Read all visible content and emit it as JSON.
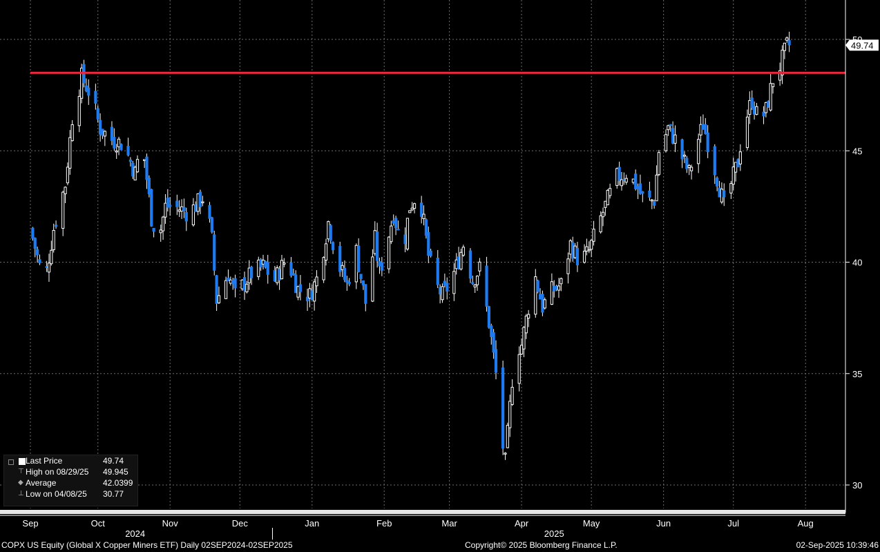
{
  "chart_data": {
    "type": "candlestick",
    "y_range": [
      29.5,
      51.5
    ],
    "y_ticks": [
      30,
      35,
      40,
      45,
      50
    ],
    "y_tick_labels": [
      "30",
      "35",
      "40",
      "45",
      "50"
    ],
    "last_value_label": "49.74",
    "reference_line": {
      "value": 48.5,
      "color": "#e8283c"
    },
    "x_months": [
      {
        "label": "Sep",
        "day": 0
      },
      {
        "label": "Oct",
        "day": 29
      },
      {
        "label": "Nov",
        "day": 60
      },
      {
        "label": "Dec",
        "day": 90
      },
      {
        "label": "Jan",
        "day": 121
      },
      {
        "label": "Feb",
        "day": 152
      },
      {
        "label": "Mar",
        "day": 180
      },
      {
        "label": "Apr",
        "day": 211
      },
      {
        "label": "May",
        "day": 241
      },
      {
        "label": "Jun",
        "day": 272
      },
      {
        "label": "Jul",
        "day": 302
      },
      {
        "label": "Aug",
        "day": 333
      }
    ],
    "x_years": [
      {
        "label": "2024",
        "day": 45
      },
      {
        "label": "2025",
        "day": 225
      }
    ],
    "keypoints": [
      [
        0,
        41.5
      ],
      [
        6,
        39.0
      ],
      [
        10,
        41.5
      ],
      [
        15,
        43.5
      ],
      [
        18,
        46.5
      ],
      [
        22,
        48.3
      ],
      [
        26,
        47.5
      ],
      [
        30,
        46.0
      ],
      [
        35,
        45.5
      ],
      [
        40,
        45.3
      ],
      [
        45,
        44.0
      ],
      [
        48,
        45.5
      ],
      [
        52,
        42.0
      ],
      [
        55,
        41.0
      ],
      [
        58,
        42.5
      ],
      [
        62,
        42.5
      ],
      [
        68,
        42.2
      ],
      [
        75,
        43.0
      ],
      [
        78,
        41.0
      ],
      [
        80,
        38.3
      ],
      [
        85,
        39.5
      ],
      [
        88,
        38.5
      ],
      [
        95,
        39.5
      ],
      [
        100,
        39.8
      ],
      [
        105,
        39.2
      ],
      [
        110,
        40.2
      ],
      [
        115,
        38.8
      ],
      [
        120,
        38.5
      ],
      [
        124,
        39.5
      ],
      [
        128,
        41.8
      ],
      [
        132,
        40.0
      ],
      [
        136,
        39.0
      ],
      [
        140,
        40.5
      ],
      [
        144,
        38.2
      ],
      [
        148,
        41.0
      ],
      [
        150,
        39.5
      ],
      [
        153,
        40.8
      ],
      [
        156,
        42.2
      ],
      [
        160,
        40.5
      ],
      [
        163,
        42.5
      ],
      [
        167,
        43.2
      ],
      [
        171,
        40.3
      ],
      [
        174,
        39.0
      ],
      [
        177,
        38.5
      ],
      [
        180,
        39.0
      ],
      [
        183,
        39.8
      ],
      [
        186,
        40.8
      ],
      [
        190,
        39.2
      ],
      [
        193,
        39.7
      ],
      [
        197,
        37.3
      ],
      [
        200,
        35.0
      ],
      [
        202,
        32.5
      ],
      [
        204,
        31.0
      ],
      [
        206,
        33.5
      ],
      [
        208,
        36.0
      ],
      [
        211,
        36.3
      ],
      [
        214,
        38.0
      ],
      [
        217,
        39.3
      ],
      [
        220,
        38.0
      ],
      [
        224,
        38.7
      ],
      [
        228,
        39.0
      ],
      [
        232,
        40.8
      ],
      [
        236,
        40.0
      ],
      [
        240,
        40.5
      ],
      [
        244,
        41.7
      ],
      [
        248,
        42.8
      ],
      [
        252,
        43.8
      ],
      [
        256,
        44.0
      ],
      [
        260,
        43.5
      ],
      [
        264,
        42.7
      ],
      [
        268,
        42.8
      ],
      [
        270,
        45.0
      ],
      [
        274,
        46.0
      ],
      [
        277,
        45.5
      ],
      [
        280,
        44.7
      ],
      [
        283,
        44.0
      ],
      [
        286,
        45.2
      ],
      [
        289,
        46.2
      ],
      [
        292,
        45.0
      ],
      [
        295,
        43.8
      ],
      [
        298,
        42.5
      ],
      [
        301,
        43.5
      ],
      [
        304,
        44.5
      ],
      [
        306,
        46.0
      ],
      [
        310,
        47.3
      ],
      [
        313,
        46.3
      ],
      [
        316,
        46.8
      ],
      [
        319,
        48.2
      ],
      [
        322,
        48.8
      ],
      [
        325,
        49.7
      ],
      [
        326,
        49.74
      ]
    ],
    "legend": [
      {
        "label": "Last Price",
        "value": "49.74"
      },
      {
        "label": "High on 08/29/25",
        "value": "49.945"
      },
      {
        "label": "Average",
        "value": "42.0399"
      },
      {
        "label": "Low on 04/08/25",
        "value": "30.77"
      }
    ],
    "colors": {
      "up": "#ffffff",
      "down": "#1e7bf0",
      "grid": "#6e6e6e",
      "axis": "#ffffff",
      "background": "#000000"
    }
  },
  "footer": {
    "left": "COPX US Equity (Global X Copper Miners ETF)  Daily 02SEP2024-02SEP2025",
    "center": "Copyright© 2025 Bloomberg Finance L.P.",
    "right": "02-Sep-2025 10:39:46"
  }
}
